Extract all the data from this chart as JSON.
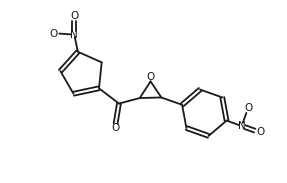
{
  "background_color": "#ffffff",
  "line_color": "#1a1a1a",
  "line_width": 1.3,
  "figsize": [
    2.87,
    1.83
  ],
  "dpi": 100,
  "xlim": [
    0,
    10
  ],
  "ylim": [
    0,
    6.5
  ]
}
